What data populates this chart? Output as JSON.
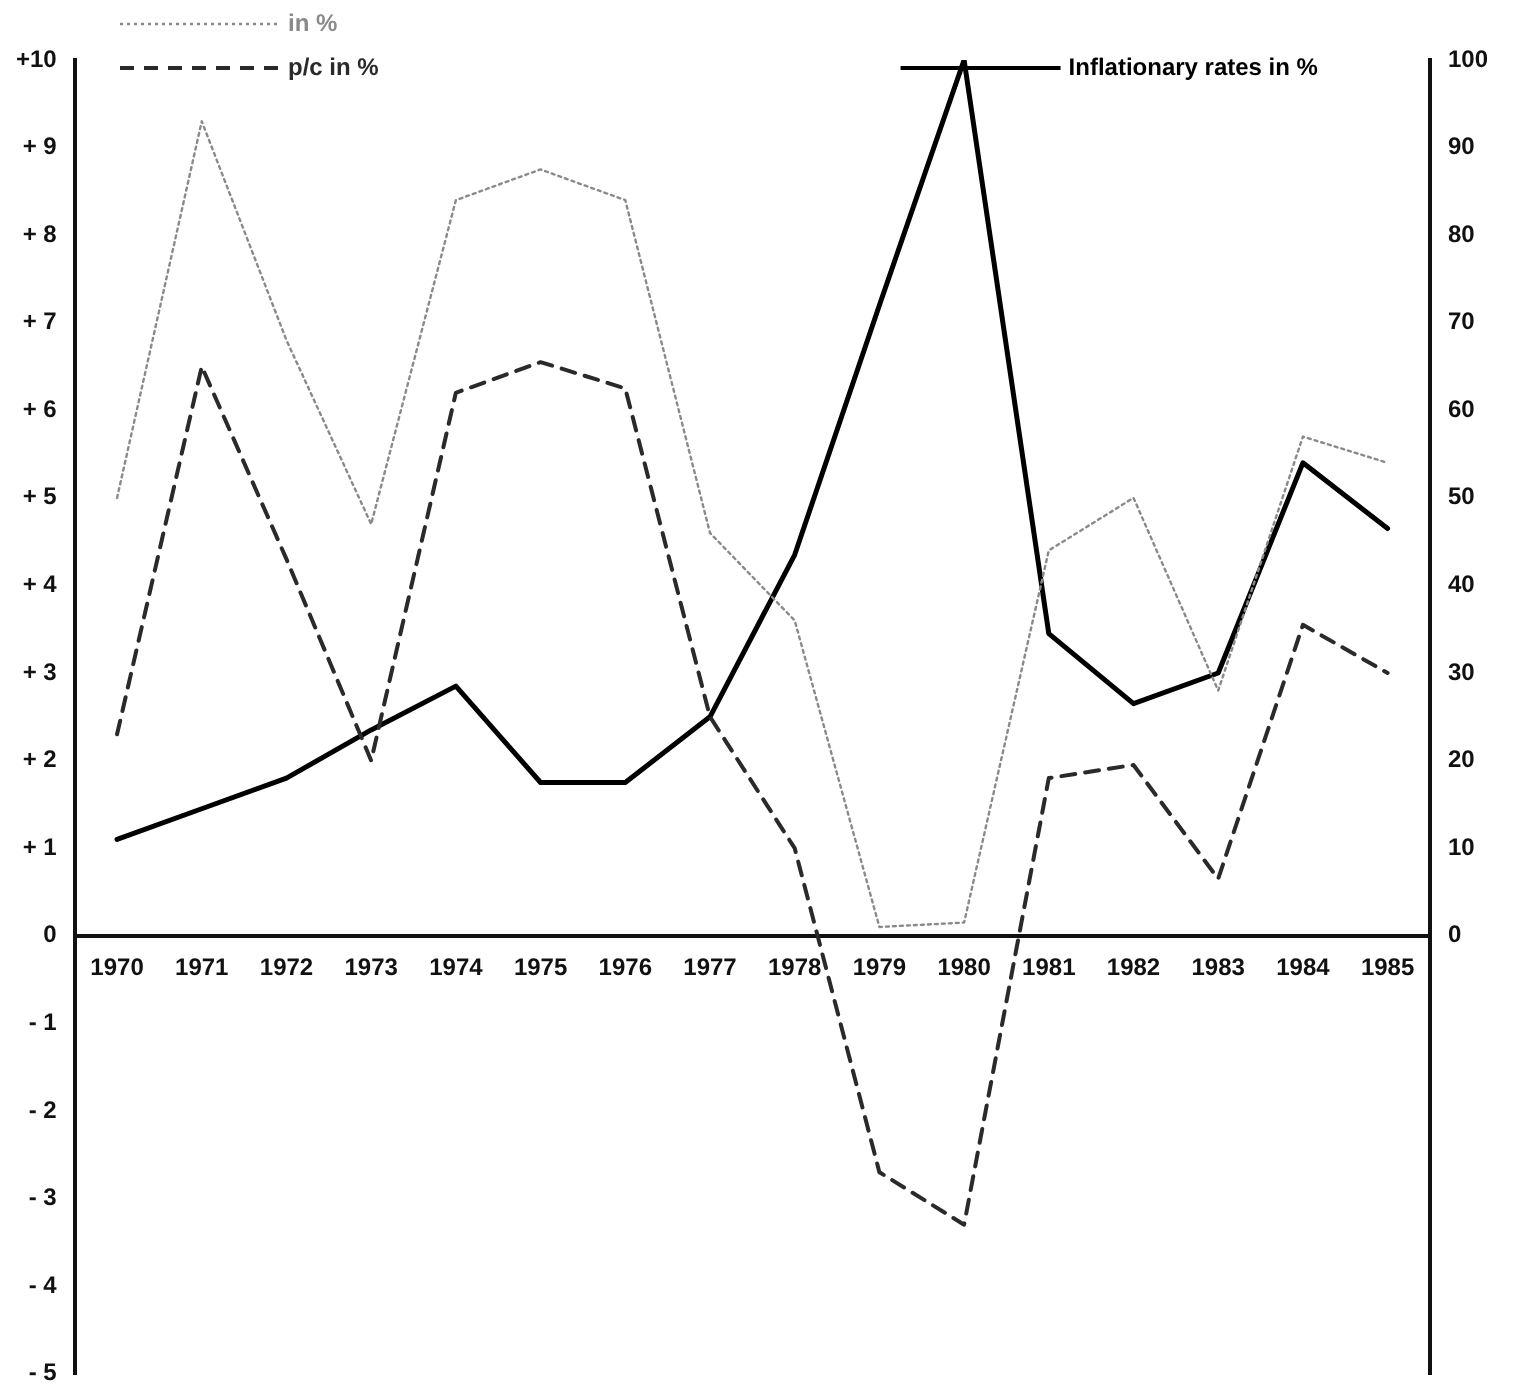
{
  "chart_data": {
    "type": "line",
    "categories": [
      "1970",
      "1971",
      "1972",
      "1973",
      "1974",
      "1975",
      "1976",
      "1977",
      "1978",
      "1979",
      "1980",
      "1981",
      "1982",
      "1983",
      "1984",
      "1985"
    ],
    "series": [
      {
        "name": "in %",
        "color": "#8a8a8a",
        "line_style": "dotted",
        "values": [
          5.0,
          9.3,
          6.8,
          4.7,
          8.4,
          8.75,
          8.4,
          4.6,
          3.6,
          0.1,
          0.15,
          4.4,
          5.0,
          2.8,
          5.7,
          5.4
        ]
      },
      {
        "name": "p/c in %",
        "color": "#2a2a2a",
        "line_style": "dashed",
        "values": [
          2.3,
          6.5,
          4.3,
          2.0,
          6.2,
          6.55,
          6.25,
          2.5,
          1.0,
          -2.7,
          -3.3,
          1.8,
          1.95,
          0.65,
          3.55,
          3.0
        ]
      },
      {
        "name": "Inflationary rates in %",
        "color": "#000000",
        "line_style": "solid",
        "axis": "y2",
        "values": [
          11,
          14.5,
          18,
          23.5,
          28.5,
          17.5,
          17.5,
          25,
          43.5,
          72,
          100,
          34.5,
          26.5,
          30,
          54,
          46.5
        ]
      }
    ],
    "ylim": [
      -5,
      10
    ],
    "yticks": [
      {
        "value": -5,
        "label": "- 5"
      },
      {
        "value": -4,
        "label": "- 4"
      },
      {
        "value": -3,
        "label": "- 3"
      },
      {
        "value": -2,
        "label": "- 2"
      },
      {
        "value": -1,
        "label": "- 1"
      },
      0,
      {
        "value": 1,
        "label": "+ 1"
      },
      {
        "value": 2,
        "label": "+ 2"
      },
      {
        "value": 3,
        "label": "+ 3"
      },
      {
        "value": 4,
        "label": "+ 4"
      },
      {
        "value": 5,
        "label": "+ 5"
      },
      {
        "value": 6,
        "label": "+ 6"
      },
      {
        "value": 7,
        "label": "+ 7"
      },
      {
        "value": 8,
        "label": "+ 8"
      },
      {
        "value": 9,
        "label": "+ 9"
      },
      {
        "value": 10,
        "label": "+10"
      }
    ],
    "y2lim": [
      -50,
      100
    ],
    "y2ticks": [
      0,
      10,
      20,
      30,
      40,
      50,
      60,
      70,
      80,
      90,
      100
    ],
    "grid": false,
    "legend": "top",
    "marker": "none"
  }
}
